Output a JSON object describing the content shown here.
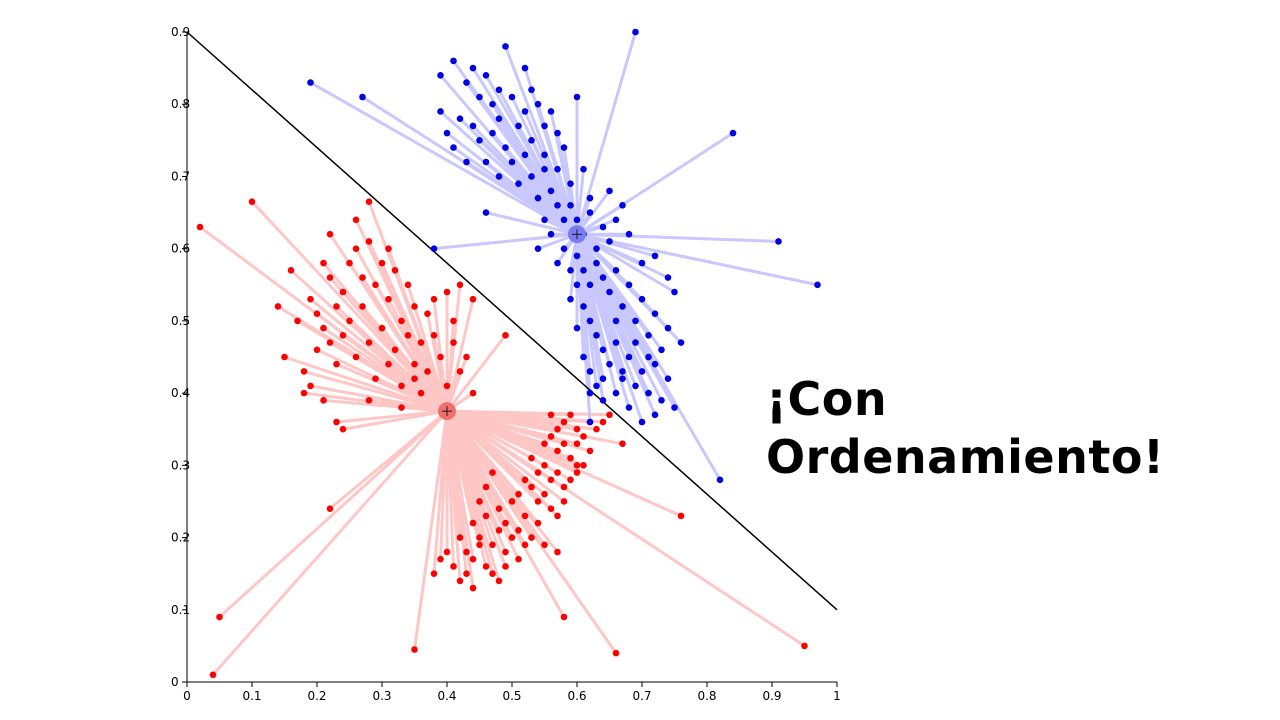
{
  "headline": {
    "line1": "¡Con",
    "line2": "Ordenamiento!"
  },
  "colors": {
    "red_points": "#ff0000",
    "red_lines": "#ffc6c6",
    "red_center": "#f0706e",
    "blue_points": "#0000e6",
    "blue_lines": "#c8c8ff",
    "blue_center": "#7c7cf0",
    "boundary": "#000000"
  },
  "chart_data": {
    "type": "scatter",
    "title": "",
    "xlabel": "",
    "ylabel": "",
    "xlim": [
      0,
      1
    ],
    "ylim": [
      0,
      0.9
    ],
    "grid": false,
    "x_ticks": [
      "0",
      "0.1",
      "0.2",
      "0.3",
      "0.4",
      "0.5",
      "0.6",
      "0.7",
      "0.8",
      "0.9",
      "1"
    ],
    "y_ticks": [
      "0",
      "0.1",
      "0.2",
      "0.3",
      "0.4",
      "0.5",
      "0.6",
      "0.7",
      "0.8",
      "0.9"
    ],
    "boundary_line": [
      [
        0,
        0.9
      ],
      [
        1,
        0.1
      ]
    ],
    "clusters": [
      {
        "color_key": "red",
        "center": [
          0.4,
          0.375
        ],
        "points": [
          [
            0.02,
            0.63
          ],
          [
            0.1,
            0.665
          ],
          [
            0.28,
            0.665
          ],
          [
            0.04,
            0.01
          ],
          [
            0.05,
            0.09
          ],
          [
            0.35,
            0.045
          ],
          [
            0.66,
            0.04
          ],
          [
            0.58,
            0.09
          ],
          [
            0.95,
            0.05
          ],
          [
            0.76,
            0.23
          ],
          [
            0.22,
            0.24
          ],
          [
            0.24,
            0.35
          ],
          [
            0.49,
            0.48
          ],
          [
            0.67,
            0.33
          ],
          [
            0.14,
            0.52
          ],
          [
            0.15,
            0.45
          ],
          [
            0.17,
            0.5
          ],
          [
            0.18,
            0.4
          ],
          [
            0.18,
            0.43
          ],
          [
            0.19,
            0.53
          ],
          [
            0.2,
            0.51
          ],
          [
            0.2,
            0.46
          ],
          [
            0.21,
            0.49
          ],
          [
            0.21,
            0.39
          ],
          [
            0.22,
            0.56
          ],
          [
            0.22,
            0.47
          ],
          [
            0.23,
            0.52
          ],
          [
            0.23,
            0.44
          ],
          [
            0.24,
            0.54
          ],
          [
            0.24,
            0.48
          ],
          [
            0.25,
            0.58
          ],
          [
            0.25,
            0.5
          ],
          [
            0.26,
            0.6
          ],
          [
            0.26,
            0.45
          ],
          [
            0.27,
            0.52
          ],
          [
            0.27,
            0.56
          ],
          [
            0.28,
            0.61
          ],
          [
            0.28,
            0.47
          ],
          [
            0.29,
            0.55
          ],
          [
            0.29,
            0.42
          ],
          [
            0.3,
            0.58
          ],
          [
            0.3,
            0.49
          ],
          [
            0.31,
            0.53
          ],
          [
            0.31,
            0.44
          ],
          [
            0.32,
            0.57
          ],
          [
            0.32,
            0.46
          ],
          [
            0.33,
            0.5
          ],
          [
            0.33,
            0.41
          ],
          [
            0.34,
            0.55
          ],
          [
            0.34,
            0.48
          ],
          [
            0.35,
            0.44
          ],
          [
            0.35,
            0.52
          ],
          [
            0.36,
            0.47
          ],
          [
            0.36,
            0.4
          ],
          [
            0.37,
            0.51
          ],
          [
            0.37,
            0.43
          ],
          [
            0.38,
            0.48
          ],
          [
            0.38,
            0.53
          ],
          [
            0.39,
            0.45
          ],
          [
            0.4,
            0.54
          ],
          [
            0.4,
            0.41
          ],
          [
            0.41,
            0.5
          ],
          [
            0.41,
            0.47
          ],
          [
            0.42,
            0.55
          ],
          [
            0.42,
            0.43
          ],
          [
            0.43,
            0.45
          ],
          [
            0.44,
            0.53
          ],
          [
            0.44,
            0.4
          ],
          [
            0.22,
            0.62
          ],
          [
            0.21,
            0.58
          ],
          [
            0.31,
            0.6
          ],
          [
            0.26,
            0.64
          ],
          [
            0.16,
            0.57
          ],
          [
            0.19,
            0.41
          ],
          [
            0.23,
            0.36
          ],
          [
            0.28,
            0.39
          ],
          [
            0.33,
            0.38
          ],
          [
            0.35,
            0.42
          ],
          [
            0.56,
            0.37
          ],
          [
            0.57,
            0.35
          ],
          [
            0.58,
            0.36
          ],
          [
            0.59,
            0.37
          ],
          [
            0.6,
            0.35
          ],
          [
            0.61,
            0.34
          ],
          [
            0.62,
            0.36
          ],
          [
            0.63,
            0.35
          ],
          [
            0.64,
            0.36
          ],
          [
            0.55,
            0.33
          ],
          [
            0.56,
            0.34
          ],
          [
            0.57,
            0.32
          ],
          [
            0.58,
            0.33
          ],
          [
            0.59,
            0.31
          ],
          [
            0.6,
            0.33
          ],
          [
            0.61,
            0.3
          ],
          [
            0.62,
            0.32
          ],
          [
            0.54,
            0.29
          ],
          [
            0.55,
            0.3
          ],
          [
            0.56,
            0.28
          ],
          [
            0.57,
            0.29
          ],
          [
            0.58,
            0.27
          ],
          [
            0.59,
            0.28
          ],
          [
            0.6,
            0.29
          ],
          [
            0.51,
            0.26
          ],
          [
            0.52,
            0.28
          ],
          [
            0.53,
            0.27
          ],
          [
            0.54,
            0.25
          ],
          [
            0.55,
            0.26
          ],
          [
            0.56,
            0.24
          ],
          [
            0.57,
            0.23
          ],
          [
            0.58,
            0.25
          ],
          [
            0.48,
            0.24
          ],
          [
            0.49,
            0.22
          ],
          [
            0.5,
            0.25
          ],
          [
            0.51,
            0.21
          ],
          [
            0.52,
            0.23
          ],
          [
            0.53,
            0.2
          ],
          [
            0.54,
            0.22
          ],
          [
            0.55,
            0.19
          ],
          [
            0.57,
            0.18
          ],
          [
            0.44,
            0.22
          ],
          [
            0.45,
            0.2
          ],
          [
            0.46,
            0.23
          ],
          [
            0.47,
            0.19
          ],
          [
            0.48,
            0.21
          ],
          [
            0.49,
            0.18
          ],
          [
            0.5,
            0.2
          ],
          [
            0.51,
            0.17
          ],
          [
            0.52,
            0.19
          ],
          [
            0.43,
            0.18
          ],
          [
            0.44,
            0.17
          ],
          [
            0.45,
            0.19
          ],
          [
            0.46,
            0.16
          ],
          [
            0.47,
            0.15
          ],
          [
            0.48,
            0.14
          ],
          [
            0.49,
            0.16
          ],
          [
            0.42,
            0.2
          ],
          [
            0.43,
            0.15
          ],
          [
            0.44,
            0.13
          ],
          [
            0.41,
            0.16
          ],
          [
            0.42,
            0.14
          ],
          [
            0.4,
            0.18
          ],
          [
            0.39,
            0.17
          ],
          [
            0.38,
            0.15
          ],
          [
            0.46,
            0.27
          ],
          [
            0.47,
            0.29
          ],
          [
            0.45,
            0.25
          ],
          [
            0.53,
            0.31
          ],
          [
            0.6,
            0.3
          ],
          [
            0.65,
            0.37
          ]
        ]
      },
      {
        "color_key": "blue",
        "center": [
          0.6,
          0.62
        ],
        "points": [
          [
            0.69,
            0.9
          ],
          [
            0.19,
            0.83
          ],
          [
            0.27,
            0.81
          ],
          [
            0.84,
            0.76
          ],
          [
            0.91,
            0.61
          ],
          [
            0.97,
            0.55
          ],
          [
            0.82,
            0.28
          ],
          [
            0.38,
            0.6
          ],
          [
            0.46,
            0.65
          ],
          [
            0.62,
            0.36
          ],
          [
            0.39,
            0.84
          ],
          [
            0.41,
            0.86
          ],
          [
            0.43,
            0.83
          ],
          [
            0.44,
            0.85
          ],
          [
            0.45,
            0.81
          ],
          [
            0.46,
            0.84
          ],
          [
            0.47,
            0.8
          ],
          [
            0.48,
            0.82
          ],
          [
            0.48,
            0.78
          ],
          [
            0.49,
            0.88
          ],
          [
            0.5,
            0.81
          ],
          [
            0.51,
            0.77
          ],
          [
            0.52,
            0.85
          ],
          [
            0.52,
            0.79
          ],
          [
            0.53,
            0.82
          ],
          [
            0.53,
            0.75
          ],
          [
            0.54,
            0.8
          ],
          [
            0.55,
            0.77
          ],
          [
            0.55,
            0.73
          ],
          [
            0.56,
            0.79
          ],
          [
            0.57,
            0.76
          ],
          [
            0.57,
            0.71
          ],
          [
            0.58,
            0.74
          ],
          [
            0.59,
            0.69
          ],
          [
            0.6,
            0.81
          ],
          [
            0.61,
            0.71
          ],
          [
            0.62,
            0.67
          ],
          [
            0.39,
            0.79
          ],
          [
            0.4,
            0.76
          ],
          [
            0.41,
            0.74
          ],
          [
            0.42,
            0.78
          ],
          [
            0.43,
            0.72
          ],
          [
            0.44,
            0.77
          ],
          [
            0.45,
            0.75
          ],
          [
            0.46,
            0.72
          ],
          [
            0.47,
            0.76
          ],
          [
            0.48,
            0.7
          ],
          [
            0.49,
            0.74
          ],
          [
            0.5,
            0.72
          ],
          [
            0.51,
            0.69
          ],
          [
            0.52,
            0.73
          ],
          [
            0.53,
            0.7
          ],
          [
            0.54,
            0.67
          ],
          [
            0.55,
            0.71
          ],
          [
            0.56,
            0.68
          ],
          [
            0.57,
            0.66
          ],
          [
            0.58,
            0.64
          ],
          [
            0.59,
            0.66
          ],
          [
            0.6,
            0.64
          ],
          [
            0.61,
            0.62
          ],
          [
            0.62,
            0.65
          ],
          [
            0.63,
            0.6
          ],
          [
            0.64,
            0.63
          ],
          [
            0.65,
            0.61
          ],
          [
            0.66,
            0.64
          ],
          [
            0.67,
            0.66
          ],
          [
            0.68,
            0.62
          ],
          [
            0.6,
            0.59
          ],
          [
            0.61,
            0.57
          ],
          [
            0.62,
            0.55
          ],
          [
            0.63,
            0.58
          ],
          [
            0.64,
            0.56
          ],
          [
            0.65,
            0.54
          ],
          [
            0.66,
            0.57
          ],
          [
            0.67,
            0.52
          ],
          [
            0.68,
            0.55
          ],
          [
            0.69,
            0.5
          ],
          [
            0.7,
            0.53
          ],
          [
            0.71,
            0.48
          ],
          [
            0.72,
            0.51
          ],
          [
            0.73,
            0.46
          ],
          [
            0.74,
            0.49
          ],
          [
            0.75,
            0.54
          ],
          [
            0.76,
            0.47
          ],
          [
            0.6,
            0.55
          ],
          [
            0.61,
            0.52
          ],
          [
            0.62,
            0.5
          ],
          [
            0.63,
            0.48
          ],
          [
            0.64,
            0.46
          ],
          [
            0.65,
            0.44
          ],
          [
            0.66,
            0.47
          ],
          [
            0.67,
            0.43
          ],
          [
            0.68,
            0.45
          ],
          [
            0.69,
            0.41
          ],
          [
            0.7,
            0.43
          ],
          [
            0.71,
            0.4
          ],
          [
            0.72,
            0.44
          ],
          [
            0.73,
            0.39
          ],
          [
            0.74,
            0.42
          ],
          [
            0.75,
            0.38
          ],
          [
            0.59,
            0.57
          ],
          [
            0.59,
            0.53
          ],
          [
            0.6,
            0.49
          ],
          [
            0.61,
            0.45
          ],
          [
            0.62,
            0.43
          ],
          [
            0.63,
            0.41
          ],
          [
            0.64,
            0.39
          ],
          [
            0.66,
            0.4
          ],
          [
            0.68,
            0.38
          ],
          [
            0.7,
            0.36
          ],
          [
            0.72,
            0.37
          ],
          [
            0.58,
            0.6
          ],
          [
            0.57,
            0.58
          ],
          [
            0.56,
            0.62
          ],
          [
            0.55,
            0.64
          ],
          [
            0.54,
            0.6
          ],
          [
            0.65,
            0.68
          ],
          [
            0.7,
            0.58
          ],
          [
            0.74,
            0.56
          ],
          [
            0.72,
            0.59
          ],
          [
            0.66,
            0.5
          ],
          [
            0.69,
            0.47
          ],
          [
            0.71,
            0.45
          ],
          [
            0.67,
            0.42
          ],
          [
            0.64,
            0.42
          ],
          [
            0.62,
            0.4
          ]
        ]
      }
    ]
  }
}
